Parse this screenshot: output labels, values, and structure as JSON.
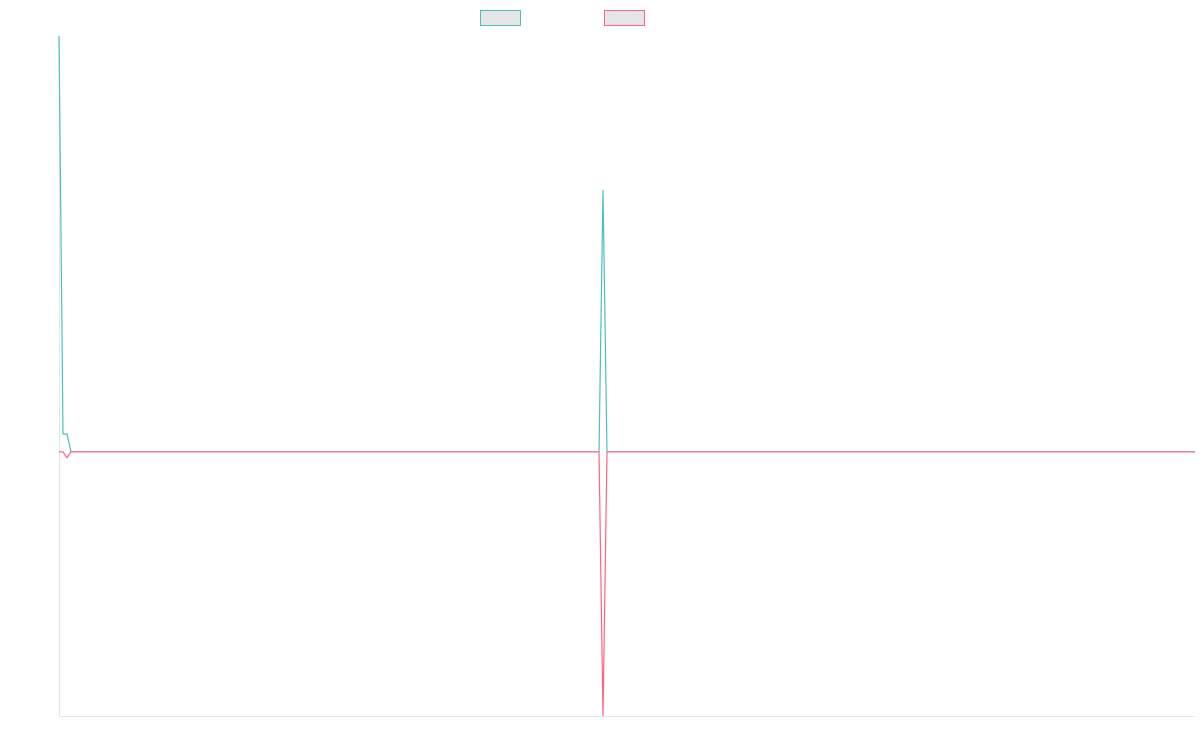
{
  "chart_data": {
    "type": "line",
    "ylim": [
      -0.635,
      1
    ],
    "series": [
      {
        "color": "#4bc0c0",
        "values": [
          1,
          0.043,
          0.043,
          0,
          0,
          0,
          0,
          0,
          0,
          0,
          0,
          0,
          0,
          0,
          0,
          0,
          0,
          0,
          0,
          0,
          0,
          0,
          0,
          0,
          0,
          0,
          0,
          0,
          0,
          0,
          0,
          0,
          0,
          0,
          0,
          0,
          0,
          0,
          0,
          0,
          0,
          0,
          0,
          0,
          0,
          0,
          0,
          0,
          0,
          0,
          0,
          0,
          0,
          0,
          0,
          0,
          0,
          0,
          0,
          0,
          0,
          0,
          0,
          0,
          0,
          0,
          0,
          0,
          0,
          0,
          0,
          0,
          0,
          0,
          0,
          0,
          0,
          0,
          0,
          0,
          0,
          0,
          0,
          0,
          0,
          0,
          0,
          0,
          0,
          0,
          0,
          0,
          0,
          0,
          0,
          0,
          0,
          0,
          0,
          0,
          0,
          0,
          0,
          0,
          0,
          0,
          0,
          0,
          0,
          0,
          0,
          0,
          0,
          0,
          0,
          0,
          0,
          0,
          0,
          0,
          0,
          0,
          0,
          0,
          0,
          0,
          0,
          0,
          0,
          0,
          0,
          0,
          0,
          0,
          0,
          0,
          0.63,
          0,
          0,
          0,
          0,
          0,
          0,
          0,
          0,
          0,
          0,
          0,
          0,
          0,
          0,
          0,
          0,
          0,
          0,
          0,
          0,
          0,
          0,
          0,
          0,
          0,
          0,
          0,
          0,
          0,
          0,
          0,
          0,
          0,
          0,
          0,
          0,
          0,
          0,
          0,
          0,
          0,
          0,
          0,
          0,
          0,
          0,
          0,
          0,
          0,
          0,
          0,
          0,
          0,
          0,
          0,
          0,
          0,
          0,
          0,
          0,
          0,
          0,
          0,
          0,
          0,
          0,
          0,
          0,
          0,
          0,
          0,
          0,
          0,
          0,
          0,
          0,
          0,
          0,
          0,
          0,
          0,
          0,
          0,
          0,
          0,
          0,
          0,
          0,
          0,
          0,
          0,
          0,
          0,
          0,
          0,
          0,
          0,
          0,
          0,
          0,
          0,
          0,
          0,
          0,
          0,
          0,
          0,
          0,
          0,
          0,
          0,
          0,
          0,
          0,
          0,
          0,
          0,
          0,
          0,
          0,
          0,
          0,
          0,
          0,
          0,
          0,
          0,
          0,
          0,
          0,
          0,
          0,
          0,
          0,
          0,
          0,
          0,
          0,
          0,
          0,
          0,
          0,
          0,
          0,
          0,
          0,
          0,
          0
        ]
      },
      {
        "color": "#ff6384",
        "values": [
          0,
          0,
          -0.014,
          0,
          0,
          0,
          0,
          0,
          0,
          0,
          0,
          0,
          0,
          0,
          0,
          0,
          0,
          0,
          0,
          0,
          0,
          0,
          0,
          0,
          0,
          0,
          0,
          0,
          0,
          0,
          0,
          0,
          0,
          0,
          0,
          0,
          0,
          0,
          0,
          0,
          0,
          0,
          0,
          0,
          0,
          0,
          0,
          0,
          0,
          0,
          0,
          0,
          0,
          0,
          0,
          0,
          0,
          0,
          0,
          0,
          0,
          0,
          0,
          0,
          0,
          0,
          0,
          0,
          0,
          0,
          0,
          0,
          0,
          0,
          0,
          0,
          0,
          0,
          0,
          0,
          0,
          0,
          0,
          0,
          0,
          0,
          0,
          0,
          0,
          0,
          0,
          0,
          0,
          0,
          0,
          0,
          0,
          0,
          0,
          0,
          0,
          0,
          0,
          0,
          0,
          0,
          0,
          0,
          0,
          0,
          0,
          0,
          0,
          0,
          0,
          0,
          0,
          0,
          0,
          0,
          0,
          0,
          0,
          0,
          0,
          0,
          0,
          0,
          0,
          0,
          0,
          0,
          0,
          0,
          0,
          0,
          -0.635,
          0,
          0,
          0,
          0,
          0,
          0,
          0,
          0,
          0,
          0,
          0,
          0,
          0,
          0,
          0,
          0,
          0,
          0,
          0,
          0,
          0,
          0,
          0,
          0,
          0,
          0,
          0,
          0,
          0,
          0,
          0,
          0,
          0,
          0,
          0,
          0,
          0,
          0,
          0,
          0,
          0,
          0,
          0,
          0,
          0,
          0,
          0,
          0,
          0,
          0,
          0,
          0,
          0,
          0,
          0,
          0,
          0,
          0,
          0,
          0,
          0,
          0,
          0,
          0,
          0,
          0,
          0,
          0,
          0,
          0,
          0,
          0,
          0,
          0,
          0,
          0,
          0,
          0,
          0,
          0,
          0,
          0,
          0,
          0,
          0,
          0,
          0,
          0,
          0,
          0,
          0,
          0,
          0,
          0,
          0,
          0,
          0,
          0,
          0,
          0,
          0,
          0,
          0,
          0,
          0,
          0,
          0,
          0,
          0,
          0,
          0,
          0,
          0,
          0,
          0,
          0,
          0,
          0,
          0,
          0,
          0,
          0,
          0,
          0,
          0,
          0,
          0,
          0,
          0,
          0,
          0,
          0,
          0,
          0,
          0,
          0,
          0,
          0,
          0,
          0,
          0,
          0,
          0,
          0,
          0,
          0,
          0,
          0
        ]
      }
    ]
  }
}
